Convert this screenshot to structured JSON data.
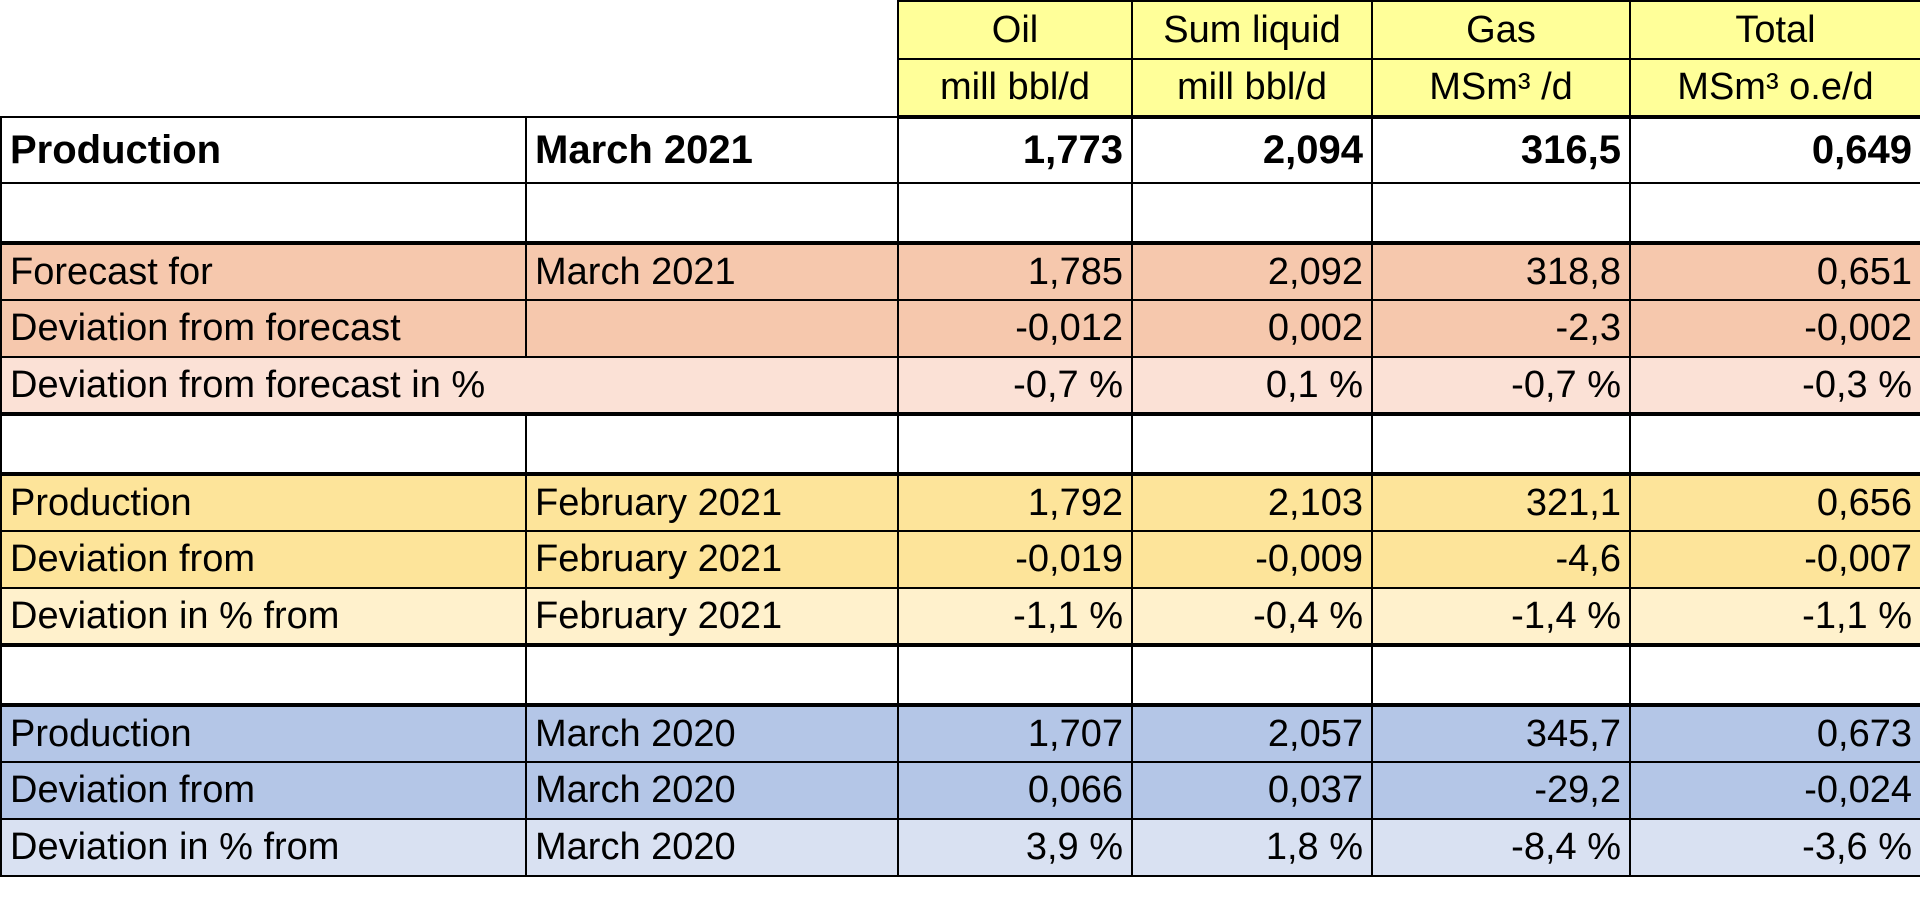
{
  "header": {
    "columns": [
      {
        "name": "Oil",
        "unit": "mill bbl/d"
      },
      {
        "name": "Sum liquid",
        "unit": "mill bbl/d"
      },
      {
        "name": "Gas",
        "unit": "MSm³ /d"
      },
      {
        "name": "Total",
        "unit": "MSm³ o.e/d"
      }
    ]
  },
  "rows": [
    {
      "label": "Production",
      "period": "March 2021",
      "values": [
        "1,773",
        "2,094",
        "316,5",
        "0,649"
      ]
    },
    {
      "label": "",
      "period": "",
      "values": [
        "",
        "",
        "",
        ""
      ]
    },
    {
      "label": "Forecast for",
      "period": "March 2021",
      "values": [
        "1,785",
        "2,092",
        "318,8",
        "0,651"
      ]
    },
    {
      "label": "Deviation from forecast",
      "period": "",
      "values": [
        "-0,012",
        "0,002",
        "-2,3",
        "-0,002"
      ]
    },
    {
      "label": "Deviation from forecast in %",
      "period": "",
      "values": [
        "-0,7 %",
        "0,1 %",
        "-0,7 %",
        "-0,3 %"
      ]
    },
    {
      "label": "",
      "period": "",
      "values": [
        "",
        "",
        "",
        ""
      ]
    },
    {
      "label": "Production",
      "period": "February 2021",
      "values": [
        "1,792",
        "2,103",
        "321,1",
        "0,656"
      ]
    },
    {
      "label": "Deviation from",
      "period": "February 2021",
      "values": [
        "-0,019",
        "-0,009",
        "-4,6",
        "-0,007"
      ]
    },
    {
      "label": "Deviation  in % from",
      "period": "February 2021",
      "values": [
        "-1,1 %",
        "-0,4 %",
        "-1,4 %",
        "-1,1 %"
      ]
    },
    {
      "label": "",
      "period": "",
      "values": [
        "",
        "",
        "",
        ""
      ]
    },
    {
      "label": "Production",
      "period": "March 2020",
      "values": [
        "1,707",
        "2,057",
        "345,7",
        "0,673"
      ]
    },
    {
      "label": "Deviation from",
      "period": "March 2020",
      "values": [
        "0,066",
        "0,037",
        "-29,2",
        "-0,024"
      ]
    },
    {
      "label": "Deviation  in % from",
      "period": "March 2020",
      "values": [
        "3,9 %",
        "1,8 %",
        "-8,4 %",
        "-3,6 %"
      ]
    }
  ],
  "colors": {
    "header": "#ffff99",
    "forecast": "#f6c8ad",
    "forecast_light": "#fbe1d6",
    "prev_month": "#fde49a",
    "prev_month_light": "#fff1cc",
    "prev_year": "#b4c6e7",
    "prev_year_light": "#d9e1f2"
  }
}
